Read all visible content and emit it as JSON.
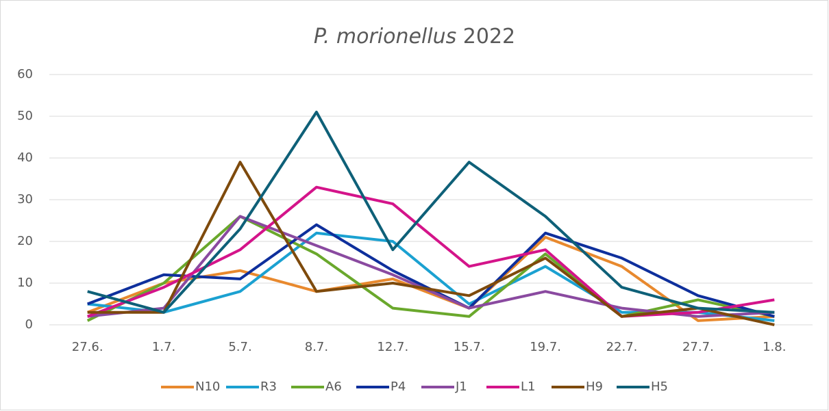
{
  "chart_data": {
    "type": "line",
    "title": [
      "P. morionellus",
      "2022"
    ],
    "categories": [
      "27.6.",
      "1.7.",
      "5.7.",
      "8.7.",
      "12.7.",
      "15.7.",
      "19.7.",
      "22.7.",
      "27.7.",
      "1.8."
    ],
    "series": [
      {
        "name": "N10",
        "color": "#e8892e",
        "values": [
          3,
          10,
          13,
          8,
          11,
          4,
          21,
          14,
          1,
          2
        ]
      },
      {
        "name": "R3",
        "color": "#1ba1d1",
        "values": [
          5,
          3,
          8,
          22,
          20,
          5,
          14,
          3,
          3,
          1
        ]
      },
      {
        "name": "A6",
        "color": "#6aa82c",
        "values": [
          1,
          10,
          26,
          17,
          4,
          2,
          17,
          2,
          6,
          2
        ]
      },
      {
        "name": "P4",
        "color": "#0e2f9c",
        "values": [
          5,
          12,
          11,
          24,
          13,
          4,
          22,
          16,
          7,
          2
        ]
      },
      {
        "name": "J1",
        "color": "#8a4aa0",
        "values": [
          2,
          4,
          26,
          19,
          12,
          4,
          8,
          4,
          2,
          3
        ]
      },
      {
        "name": "L1",
        "color": "#d4148a",
        "values": [
          2,
          9,
          18,
          33,
          29,
          14,
          18,
          2,
          3,
          6
        ]
      },
      {
        "name": "H9",
        "color": "#7e4a0c",
        "values": [
          3,
          3,
          39,
          8,
          10,
          7,
          16,
          2,
          4,
          0
        ]
      },
      {
        "name": "H5",
        "color": "#0e6078",
        "values": [
          8,
          3,
          23,
          51,
          18,
          39,
          26,
          9,
          4,
          3
        ]
      }
    ],
    "ylim": [
      0,
      60
    ],
    "yticks": [
      0,
      10,
      20,
      30,
      40,
      50,
      60
    ],
    "grid": true,
    "legend": "bottom"
  }
}
